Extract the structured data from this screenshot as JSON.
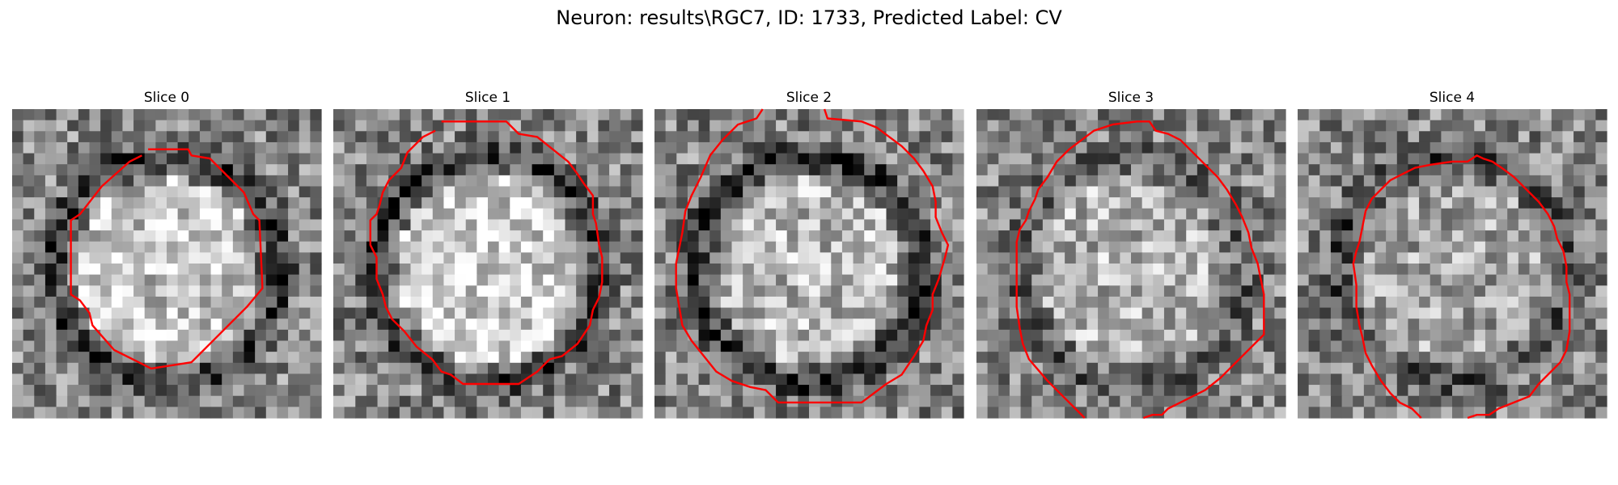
{
  "figure": {
    "title": "Neuron: results\\RGC7, ID: 1733, Predicted Label: CV",
    "contour_color": "#ff0000"
  },
  "panels": [
    {
      "title": "Slice 0",
      "seed": 11,
      "dark_ring": 0.62,
      "cell_bright": 0.25,
      "contour": [
        [
          0.44,
          0.13
        ],
        [
          0.57,
          0.13
        ],
        [
          0.58,
          0.15
        ],
        [
          0.64,
          0.16
        ],
        [
          0.75,
          0.27
        ],
        [
          0.78,
          0.34
        ],
        [
          0.8,
          0.36
        ],
        [
          0.81,
          0.58
        ],
        [
          0.76,
          0.64
        ],
        [
          0.64,
          0.76
        ],
        [
          0.6,
          0.8
        ],
        [
          0.58,
          0.82
        ],
        [
          0.45,
          0.84
        ],
        [
          0.41,
          0.82
        ],
        [
          0.33,
          0.78
        ],
        [
          0.26,
          0.7
        ],
        [
          0.25,
          0.66
        ],
        [
          0.22,
          0.62
        ],
        [
          0.19,
          0.6
        ],
        [
          0.19,
          0.36
        ],
        [
          0.22,
          0.34
        ],
        [
          0.29,
          0.25
        ],
        [
          0.38,
          0.17
        ],
        [
          0.42,
          0.15
        ]
      ]
    },
    {
      "title": "Slice 1",
      "seed": 23,
      "dark_ring": 0.55,
      "cell_bright": 0.3,
      "contour": [
        [
          0.35,
          0.04
        ],
        [
          0.56,
          0.04
        ],
        [
          0.6,
          0.08
        ],
        [
          0.66,
          0.09
        ],
        [
          0.71,
          0.13
        ],
        [
          0.76,
          0.17
        ],
        [
          0.79,
          0.21
        ],
        [
          0.81,
          0.24
        ],
        [
          0.84,
          0.28
        ],
        [
          0.84,
          0.34
        ],
        [
          0.85,
          0.37
        ],
        [
          0.86,
          0.44
        ],
        [
          0.87,
          0.48
        ],
        [
          0.87,
          0.56
        ],
        [
          0.86,
          0.61
        ],
        [
          0.84,
          0.65
        ],
        [
          0.83,
          0.7
        ],
        [
          0.79,
          0.76
        ],
        [
          0.74,
          0.8
        ],
        [
          0.7,
          0.81
        ],
        [
          0.66,
          0.85
        ],
        [
          0.63,
          0.87
        ],
        [
          0.6,
          0.89
        ],
        [
          0.42,
          0.89
        ],
        [
          0.38,
          0.86
        ],
        [
          0.35,
          0.85
        ],
        [
          0.32,
          0.81
        ],
        [
          0.27,
          0.77
        ],
        [
          0.23,
          0.72
        ],
        [
          0.19,
          0.68
        ],
        [
          0.17,
          0.64
        ],
        [
          0.16,
          0.6
        ],
        [
          0.14,
          0.55
        ],
        [
          0.14,
          0.48
        ],
        [
          0.12,
          0.44
        ],
        [
          0.12,
          0.36
        ],
        [
          0.14,
          0.34
        ],
        [
          0.15,
          0.31
        ],
        [
          0.16,
          0.27
        ],
        [
          0.18,
          0.23
        ],
        [
          0.22,
          0.19
        ],
        [
          0.24,
          0.14
        ],
        [
          0.29,
          0.09
        ],
        [
          0.33,
          0.07
        ]
      ]
    },
    {
      "title": "Slice 2",
      "seed": 37,
      "dark_ring": 0.7,
      "cell_bright": 0.2,
      "contour": [
        [
          0.35,
          0.0
        ],
        [
          0.33,
          0.03
        ],
        [
          0.27,
          0.05
        ],
        [
          0.22,
          0.1
        ],
        [
          0.18,
          0.15
        ],
        [
          0.15,
          0.22
        ],
        [
          0.12,
          0.28
        ],
        [
          0.1,
          0.33
        ],
        [
          0.09,
          0.4
        ],
        [
          0.08,
          0.45
        ],
        [
          0.07,
          0.5
        ],
        [
          0.07,
          0.58
        ],
        [
          0.08,
          0.64
        ],
        [
          0.09,
          0.7
        ],
        [
          0.12,
          0.75
        ],
        [
          0.16,
          0.8
        ],
        [
          0.2,
          0.85
        ],
        [
          0.25,
          0.88
        ],
        [
          0.31,
          0.9
        ],
        [
          0.36,
          0.91
        ],
        [
          0.4,
          0.95
        ],
        [
          0.67,
          0.95
        ],
        [
          0.75,
          0.89
        ],
        [
          0.8,
          0.86
        ],
        [
          0.84,
          0.8
        ],
        [
          0.87,
          0.75
        ],
        [
          0.88,
          0.7
        ],
        [
          0.9,
          0.65
        ],
        [
          0.9,
          0.6
        ],
        [
          0.92,
          0.55
        ],
        [
          0.94,
          0.48
        ],
        [
          0.95,
          0.44
        ],
        [
          0.93,
          0.4
        ],
        [
          0.91,
          0.35
        ],
        [
          0.91,
          0.3
        ],
        [
          0.9,
          0.25
        ],
        [
          0.87,
          0.2
        ],
        [
          0.84,
          0.16
        ],
        [
          0.8,
          0.12
        ],
        [
          0.76,
          0.09
        ],
        [
          0.72,
          0.06
        ],
        [
          0.67,
          0.04
        ],
        [
          0.56,
          0.03
        ],
        [
          0.55,
          0.0
        ]
      ]
    },
    {
      "title": "Slice 3",
      "seed": 53,
      "dark_ring": 0.35,
      "cell_bright": 0.18,
      "contour": [
        [
          0.35,
          1.0
        ],
        [
          0.33,
          0.98
        ],
        [
          0.28,
          0.93
        ],
        [
          0.23,
          0.88
        ],
        [
          0.17,
          0.81
        ],
        [
          0.15,
          0.76
        ],
        [
          0.14,
          0.71
        ],
        [
          0.13,
          0.64
        ],
        [
          0.13,
          0.57
        ],
        [
          0.13,
          0.5
        ],
        [
          0.13,
          0.43
        ],
        [
          0.14,
          0.39
        ],
        [
          0.16,
          0.36
        ],
        [
          0.17,
          0.33
        ],
        [
          0.19,
          0.29
        ],
        [
          0.2,
          0.26
        ],
        [
          0.23,
          0.22
        ],
        [
          0.26,
          0.17
        ],
        [
          0.3,
          0.13
        ],
        [
          0.34,
          0.1
        ],
        [
          0.38,
          0.07
        ],
        [
          0.44,
          0.05
        ],
        [
          0.52,
          0.04
        ],
        [
          0.56,
          0.04
        ],
        [
          0.58,
          0.07
        ],
        [
          0.62,
          0.08
        ],
        [
          0.66,
          0.1
        ],
        [
          0.7,
          0.14
        ],
        [
          0.74,
          0.18
        ],
        [
          0.78,
          0.22
        ],
        [
          0.81,
          0.26
        ],
        [
          0.84,
          0.31
        ],
        [
          0.86,
          0.35
        ],
        [
          0.88,
          0.4
        ],
        [
          0.89,
          0.45
        ],
        [
          0.91,
          0.5
        ],
        [
          0.92,
          0.55
        ],
        [
          0.93,
          0.6
        ],
        [
          0.93,
          0.66
        ],
        [
          0.93,
          0.73
        ],
        [
          0.89,
          0.77
        ],
        [
          0.84,
          0.82
        ],
        [
          0.79,
          0.87
        ],
        [
          0.74,
          0.91
        ],
        [
          0.68,
          0.94
        ],
        [
          0.62,
          0.97
        ],
        [
          0.6,
          0.99
        ],
        [
          0.57,
          0.99
        ],
        [
          0.54,
          1.0
        ]
      ]
    },
    {
      "title": "Slice 4",
      "seed": 71,
      "dark_ring": 0.45,
      "cell_bright": 0.12,
      "contour": [
        [
          0.4,
          1.0
        ],
        [
          0.37,
          0.97
        ],
        [
          0.33,
          0.95
        ],
        [
          0.3,
          0.92
        ],
        [
          0.27,
          0.88
        ],
        [
          0.24,
          0.83
        ],
        [
          0.22,
          0.79
        ],
        [
          0.21,
          0.74
        ],
        [
          0.2,
          0.7
        ],
        [
          0.19,
          0.64
        ],
        [
          0.19,
          0.57
        ],
        [
          0.18,
          0.5
        ],
        [
          0.19,
          0.46
        ],
        [
          0.2,
          0.43
        ],
        [
          0.21,
          0.38
        ],
        [
          0.22,
          0.33
        ],
        [
          0.24,
          0.29
        ],
        [
          0.27,
          0.26
        ],
        [
          0.3,
          0.23
        ],
        [
          0.34,
          0.21
        ],
        [
          0.38,
          0.19
        ],
        [
          0.43,
          0.18
        ],
        [
          0.5,
          0.17
        ],
        [
          0.55,
          0.17
        ],
        [
          0.58,
          0.15
        ],
        [
          0.6,
          0.16
        ],
        [
          0.63,
          0.17
        ],
        [
          0.66,
          0.19
        ],
        [
          0.7,
          0.22
        ],
        [
          0.74,
          0.26
        ],
        [
          0.78,
          0.3
        ],
        [
          0.81,
          0.34
        ],
        [
          0.83,
          0.38
        ],
        [
          0.84,
          0.42
        ],
        [
          0.86,
          0.46
        ],
        [
          0.87,
          0.51
        ],
        [
          0.87,
          0.56
        ],
        [
          0.88,
          0.6
        ],
        [
          0.88,
          0.66
        ],
        [
          0.88,
          0.72
        ],
        [
          0.87,
          0.78
        ],
        [
          0.85,
          0.82
        ],
        [
          0.81,
          0.86
        ],
        [
          0.78,
          0.89
        ],
        [
          0.75,
          0.93
        ],
        [
          0.7,
          0.95
        ],
        [
          0.65,
          0.97
        ],
        [
          0.62,
          0.99
        ],
        [
          0.58,
          0.99
        ],
        [
          0.55,
          1.0
        ]
      ]
    }
  ]
}
